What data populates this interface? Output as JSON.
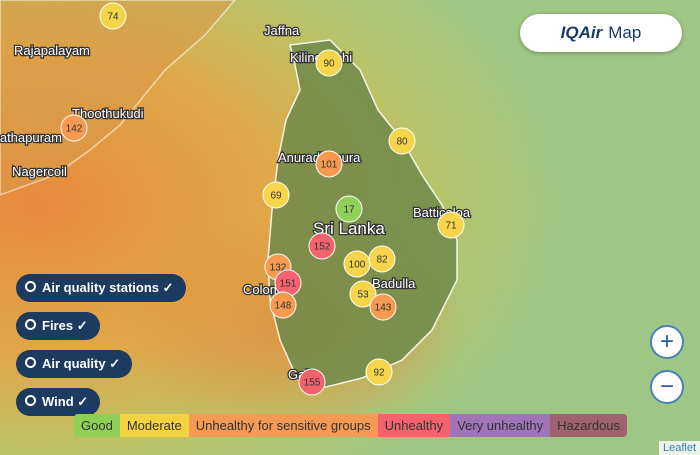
{
  "brand": {
    "name": "IQAir",
    "label": "Map"
  },
  "places": [
    "Rajapalayam",
    "Thoothukudi",
    "Ramanathapuram",
    "Nagercoil",
    "Jaffna",
    "Kilinochchi",
    "Anuradhapura",
    "Sri Lanka",
    "Batticaloa",
    "Colombo",
    "Badulla",
    "Galle"
  ],
  "stations": [
    {
      "aqi": 74,
      "color": "#f7d54a"
    },
    {
      "aqi": 142,
      "color": "#f59a50"
    },
    {
      "aqi": 90,
      "color": "#f7d54a"
    },
    {
      "aqi": 80,
      "color": "#f7d54a"
    },
    {
      "aqi": 101,
      "color": "#f59a50"
    },
    {
      "aqi": 69,
      "color": "#f7d54a"
    },
    {
      "aqi": 17,
      "color": "#8fd05a"
    },
    {
      "aqi": 71,
      "color": "#f7d54a"
    },
    {
      "aqi": 152,
      "color": "#f2636d"
    },
    {
      "aqi": 132,
      "color": "#f59a50"
    },
    {
      "aqi": 151,
      "color": "#f2636d"
    },
    {
      "aqi": 100,
      "color": "#f7d54a"
    },
    {
      "aqi": 82,
      "color": "#f7d54a"
    },
    {
      "aqi": 53,
      "color": "#f7d54a"
    },
    {
      "aqi": 143,
      "color": "#f59a50"
    },
    {
      "aqi": 148,
      "color": "#f59a50"
    },
    {
      "aqi": 92,
      "color": "#f7d54a"
    },
    {
      "aqi": 155,
      "color": "#f2636d"
    }
  ],
  "layers": [
    "Air quality stations",
    "Fires",
    "Air quality",
    "Wind"
  ],
  "legend": [
    {
      "label": "Good",
      "color": "#8fcf55"
    },
    {
      "label": "Moderate",
      "color": "#f3d33f"
    },
    {
      "label": "Unhealthy for sensitive groups",
      "color": "#f39a55"
    },
    {
      "label": "Unhealthy",
      "color": "#f2636d"
    },
    {
      "label": "Very unhealthy",
      "color": "#a173b8"
    },
    {
      "label": "Hazardous",
      "color": "#a1626f"
    }
  ],
  "zoom": [
    "+",
    "−"
  ],
  "attribution": "Leaflet"
}
